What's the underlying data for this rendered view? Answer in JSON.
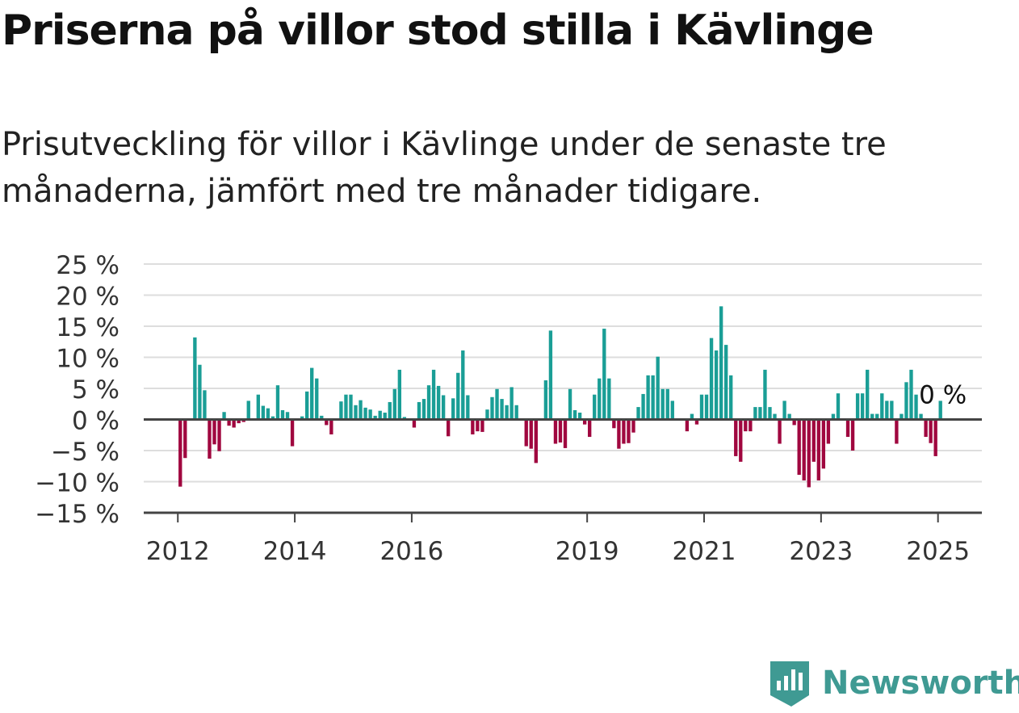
{
  "title": "Priserna på villor stod stilla i Kävlinge",
  "subtitle": "Prisutveckling för villor i Kävlinge under de senaste tre månaderna, jämfört med tre månader tidigare.",
  "brand": {
    "name": "Newsworthy",
    "color": "#3f9a93"
  },
  "chart_data": {
    "type": "bar",
    "x_axis_kind": "date",
    "x_range": [
      "2011-06",
      "2025-09"
    ],
    "ylim": [
      -15,
      25
    ],
    "yticks": [
      25,
      20,
      15,
      10,
      5,
      0,
      -5,
      -10,
      -15
    ],
    "ytick_labels": [
      "25 %",
      "20 %",
      "15 %",
      "10 %",
      "5 %",
      "0 %",
      "−5 %",
      "−10 %",
      "−15 %"
    ],
    "xticks": [
      "2012-01",
      "2014-01",
      "2016-01",
      "2019-01",
      "2021-01",
      "2023-01",
      "2025-01"
    ],
    "xtick_labels": [
      "2012",
      "2014",
      "2016",
      "2019",
      "2021",
      "2023",
      "2025"
    ],
    "grid": true,
    "colors": {
      "positive": "#1a9e96",
      "negative": "#a0073f",
      "grid": "#dddddd",
      "axis": "#444444"
    },
    "last_value_label": "0 %",
    "points": [
      {
        "x": "2012-01",
        "y": -10.8
      },
      {
        "x": "2012-02",
        "y": -6.2
      },
      {
        "x": "2012-03",
        "y": 0
      },
      {
        "x": "2012-04",
        "y": 13.2
      },
      {
        "x": "2012-05",
        "y": 8.8
      },
      {
        "x": "2012-06",
        "y": 4.7
      },
      {
        "x": "2012-07",
        "y": -6.3
      },
      {
        "x": "2012-08",
        "y": -4.0
      },
      {
        "x": "2012-09",
        "y": -5.1
      },
      {
        "x": "2012-10",
        "y": 1.2
      },
      {
        "x": "2012-11",
        "y": -1.0
      },
      {
        "x": "2012-12",
        "y": -1.3
      },
      {
        "x": "2013-01",
        "y": -0.6
      },
      {
        "x": "2013-02",
        "y": -0.4
      },
      {
        "x": "2013-03",
        "y": 3.0
      },
      {
        "x": "2013-04",
        "y": 0
      },
      {
        "x": "2013-05",
        "y": 4.0
      },
      {
        "x": "2013-06",
        "y": 2.2
      },
      {
        "x": "2013-07",
        "y": 1.8
      },
      {
        "x": "2013-08",
        "y": 0.5
      },
      {
        "x": "2013-09",
        "y": 5.5
      },
      {
        "x": "2013-10",
        "y": 1.5
      },
      {
        "x": "2013-11",
        "y": 1.2
      },
      {
        "x": "2013-12",
        "y": -4.3
      },
      {
        "x": "2014-01",
        "y": 0
      },
      {
        "x": "2014-02",
        "y": 0.5
      },
      {
        "x": "2014-03",
        "y": 4.5
      },
      {
        "x": "2014-04",
        "y": 8.3
      },
      {
        "x": "2014-05",
        "y": 6.6
      },
      {
        "x": "2014-06",
        "y": 0.6
      },
      {
        "x": "2014-07",
        "y": -0.9
      },
      {
        "x": "2014-08",
        "y": -2.4
      },
      {
        "x": "2014-09",
        "y": 0
      },
      {
        "x": "2014-10",
        "y": 2.9
      },
      {
        "x": "2014-11",
        "y": 4.0
      },
      {
        "x": "2014-12",
        "y": 4.0
      },
      {
        "x": "2015-01",
        "y": 2.3
      },
      {
        "x": "2015-02",
        "y": 3.1
      },
      {
        "x": "2015-03",
        "y": 1.9
      },
      {
        "x": "2015-04",
        "y": 1.6
      },
      {
        "x": "2015-05",
        "y": 0.6
      },
      {
        "x": "2015-06",
        "y": 1.4
      },
      {
        "x": "2015-07",
        "y": 1.1
      },
      {
        "x": "2015-08",
        "y": 2.8
      },
      {
        "x": "2015-09",
        "y": 4.9
      },
      {
        "x": "2015-10",
        "y": 8.0
      },
      {
        "x": "2015-11",
        "y": 0.4
      },
      {
        "x": "2015-12",
        "y": 0
      },
      {
        "x": "2016-01",
        "y": -1.3
      },
      {
        "x": "2016-02",
        "y": 2.8
      },
      {
        "x": "2016-03",
        "y": 3.3
      },
      {
        "x": "2016-04",
        "y": 5.5
      },
      {
        "x": "2016-05",
        "y": 8.0
      },
      {
        "x": "2016-06",
        "y": 5.4
      },
      {
        "x": "2016-07",
        "y": 3.9
      },
      {
        "x": "2016-08",
        "y": -2.7
      },
      {
        "x": "2016-09",
        "y": 3.4
      },
      {
        "x": "2016-10",
        "y": 7.5
      },
      {
        "x": "2016-11",
        "y": 11.1
      },
      {
        "x": "2016-12",
        "y": 3.9
      },
      {
        "x": "2017-01",
        "y": -2.4
      },
      {
        "x": "2017-02",
        "y": -1.9
      },
      {
        "x": "2017-03",
        "y": -2.0
      },
      {
        "x": "2017-04",
        "y": 1.6
      },
      {
        "x": "2017-05",
        "y": 3.6
      },
      {
        "x": "2017-06",
        "y": 4.9
      },
      {
        "x": "2017-07",
        "y": 3.3
      },
      {
        "x": "2017-08",
        "y": 2.3
      },
      {
        "x": "2017-09",
        "y": 5.2
      },
      {
        "x": "2017-10",
        "y": 2.3
      },
      {
        "x": "2017-11",
        "y": 0
      },
      {
        "x": "2017-12",
        "y": -4.3
      },
      {
        "x": "2018-01",
        "y": -4.7
      },
      {
        "x": "2018-02",
        "y": -7.0
      },
      {
        "x": "2018-03",
        "y": 0
      },
      {
        "x": "2018-04",
        "y": 6.3
      },
      {
        "x": "2018-05",
        "y": 14.3
      },
      {
        "x": "2018-06",
        "y": -3.9
      },
      {
        "x": "2018-07",
        "y": -3.7
      },
      {
        "x": "2018-08",
        "y": -4.6
      },
      {
        "x": "2018-09",
        "y": 4.9
      },
      {
        "x": "2018-10",
        "y": 1.5
      },
      {
        "x": "2018-11",
        "y": 1.1
      },
      {
        "x": "2018-12",
        "y": -0.8
      },
      {
        "x": "2019-01",
        "y": -2.8
      },
      {
        "x": "2019-02",
        "y": 4.0
      },
      {
        "x": "2019-03",
        "y": 6.6
      },
      {
        "x": "2019-04",
        "y": 14.6
      },
      {
        "x": "2019-05",
        "y": 6.6
      },
      {
        "x": "2019-06",
        "y": -1.4
      },
      {
        "x": "2019-07",
        "y": -4.7
      },
      {
        "x": "2019-08",
        "y": -3.9
      },
      {
        "x": "2019-09",
        "y": -3.8
      },
      {
        "x": "2019-10",
        "y": -2.1
      },
      {
        "x": "2019-11",
        "y": 2.0
      },
      {
        "x": "2019-12",
        "y": 4.1
      },
      {
        "x": "2020-01",
        "y": 7.1
      },
      {
        "x": "2020-02",
        "y": 7.1
      },
      {
        "x": "2020-03",
        "y": 10.1
      },
      {
        "x": "2020-04",
        "y": 4.9
      },
      {
        "x": "2020-05",
        "y": 4.9
      },
      {
        "x": "2020-06",
        "y": 3.0
      },
      {
        "x": "2020-07",
        "y": 0
      },
      {
        "x": "2020-08",
        "y": 0
      },
      {
        "x": "2020-09",
        "y": -1.9
      },
      {
        "x": "2020-10",
        "y": 0.9
      },
      {
        "x": "2020-11",
        "y": -0.8
      },
      {
        "x": "2020-12",
        "y": 4.0
      },
      {
        "x": "2021-01",
        "y": 4.0
      },
      {
        "x": "2021-02",
        "y": 13.1
      },
      {
        "x": "2021-03",
        "y": 11.1
      },
      {
        "x": "2021-04",
        "y": 18.2
      },
      {
        "x": "2021-05",
        "y": 12.0
      },
      {
        "x": "2021-06",
        "y": 7.1
      },
      {
        "x": "2021-07",
        "y": -5.9
      },
      {
        "x": "2021-08",
        "y": -6.8
      },
      {
        "x": "2021-09",
        "y": -1.9
      },
      {
        "x": "2021-10",
        "y": -1.9
      },
      {
        "x": "2021-11",
        "y": 2.0
      },
      {
        "x": "2021-12",
        "y": 2.0
      },
      {
        "x": "2022-01",
        "y": 8.0
      },
      {
        "x": "2022-02",
        "y": 2.0
      },
      {
        "x": "2022-03",
        "y": 0.9
      },
      {
        "x": "2022-04",
        "y": -3.9
      },
      {
        "x": "2022-05",
        "y": 3.0
      },
      {
        "x": "2022-06",
        "y": 0.9
      },
      {
        "x": "2022-07",
        "y": -0.9
      },
      {
        "x": "2022-08",
        "y": -8.9
      },
      {
        "x": "2022-09",
        "y": -9.8
      },
      {
        "x": "2022-10",
        "y": -10.9
      },
      {
        "x": "2022-11",
        "y": -6.8
      },
      {
        "x": "2022-12",
        "y": -9.8
      },
      {
        "x": "2023-01",
        "y": -7.9
      },
      {
        "x": "2023-02",
        "y": -3.9
      },
      {
        "x": "2023-03",
        "y": 0.9
      },
      {
        "x": "2023-04",
        "y": 4.2
      },
      {
        "x": "2023-05",
        "y": 0
      },
      {
        "x": "2023-06",
        "y": -2.8
      },
      {
        "x": "2023-07",
        "y": -5.0
      },
      {
        "x": "2023-08",
        "y": 4.2
      },
      {
        "x": "2023-09",
        "y": 4.2
      },
      {
        "x": "2023-10",
        "y": 8.0
      },
      {
        "x": "2023-11",
        "y": 0.9
      },
      {
        "x": "2023-12",
        "y": 0.9
      },
      {
        "x": "2024-01",
        "y": 4.2
      },
      {
        "x": "2024-02",
        "y": 3.0
      },
      {
        "x": "2024-03",
        "y": 3.0
      },
      {
        "x": "2024-04",
        "y": -3.9
      },
      {
        "x": "2024-05",
        "y": 0.9
      },
      {
        "x": "2024-06",
        "y": 6.0
      },
      {
        "x": "2024-07",
        "y": 8.0
      },
      {
        "x": "2024-08",
        "y": 4.0
      },
      {
        "x": "2024-09",
        "y": 0.9
      },
      {
        "x": "2024-10",
        "y": -2.8
      },
      {
        "x": "2024-11",
        "y": -3.8
      },
      {
        "x": "2024-12",
        "y": -5.9
      },
      {
        "x": "2025-01",
        "y": 3.0
      }
    ]
  }
}
